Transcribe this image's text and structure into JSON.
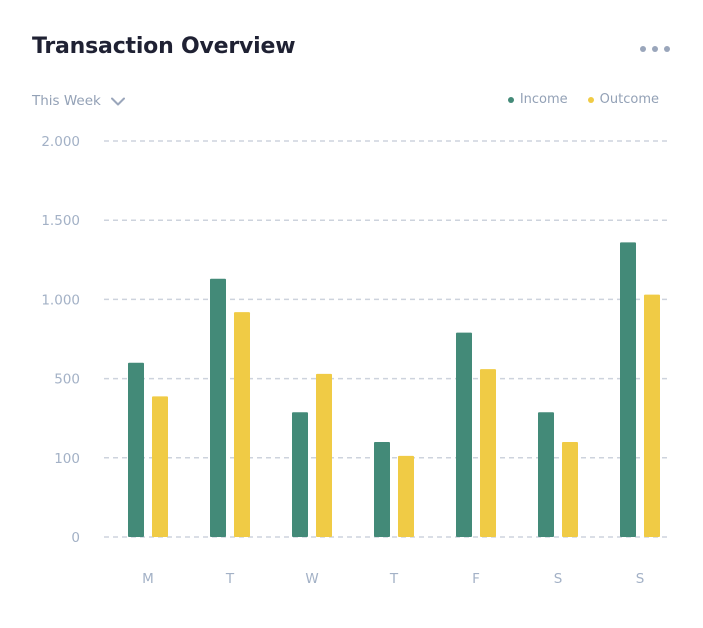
{
  "header": {
    "title": "Transaction Overview",
    "menu_icon": "more-horizontal-icon"
  },
  "filter": {
    "period_label": "This Week",
    "dropdown_icon": "chevron-down-icon"
  },
  "legend": [
    {
      "label": "Income",
      "color": "#438a78"
    },
    {
      "label": "Outcome",
      "color": "#f0cb45"
    }
  ],
  "chart_data": {
    "type": "bar",
    "title": "Transaction Overview",
    "categories": [
      "M",
      "T",
      "W",
      "T",
      "F",
      "S",
      "S"
    ],
    "y_tick_labels": [
      "0",
      "100",
      "500",
      "1.000",
      "1.500",
      "2.000"
    ],
    "y_tick_values": [
      0,
      100,
      500,
      1000,
      1500,
      2000
    ],
    "note": "the y axis is drawn with equally spaced ticks at 0, 100, 500, 1.000, 1.500, 2.000",
    "series": [
      {
        "name": "Income",
        "color": "#438a78",
        "values": [
          600,
          1130,
          330,
          180,
          790,
          330,
          1360
        ]
      },
      {
        "name": "Outcome",
        "color": "#f0cb45",
        "values": [
          410,
          920,
          530,
          110,
          560,
          180,
          1030
        ]
      }
    ],
    "grid": true,
    "legend_position": "top-right"
  }
}
